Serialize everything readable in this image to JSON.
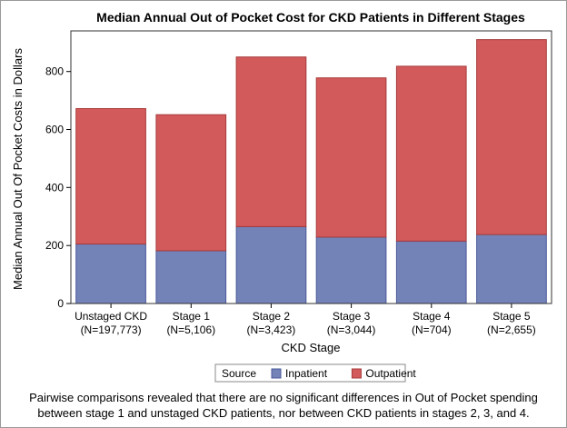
{
  "chart_data": {
    "type": "bar",
    "stacked": true,
    "title": "Median Annual Out of Pocket Cost for CKD Patients in Different Stages",
    "xlabel": "CKD Stage",
    "ylabel": "Median Annual Out Of Pocket Costs in Dollars",
    "ylim": [
      0,
      940
    ],
    "yticks": [
      0,
      200,
      400,
      600,
      800
    ],
    "categories": [
      {
        "line1": "Unstaged CKD",
        "line2": "(N=197,773)"
      },
      {
        "line1": "Stage 1",
        "line2": "(N=5,106)"
      },
      {
        "line1": "Stage 2",
        "line2": "(N=3,423)"
      },
      {
        "line1": "Stage 3",
        "line2": "(N=3,044)"
      },
      {
        "line1": "Stage 4",
        "line2": "(N=704)"
      },
      {
        "line1": "Stage 5",
        "line2": "(N=2,655)"
      }
    ],
    "series": [
      {
        "name": "Inpatient",
        "color": "#7383b8",
        "edge": "#4b5a9a",
        "values": [
          205,
          182,
          265,
          229,
          215,
          238
        ]
      },
      {
        "name": "Outpatient",
        "color": "#d35a5a",
        "edge": "#a83a3a",
        "values": [
          467,
          469,
          585,
          549,
          603,
          672
        ]
      }
    ],
    "legend": {
      "title": "Source",
      "placement": "bottom"
    },
    "grid": false
  },
  "footnote": {
    "line1": "Pairwise comparisons revealed that there are no significant differences in Out of Pocket spending",
    "line2": "between stage 1 and unstaged CKD patients, nor between CKD patients in stages 2, 3, and 4."
  }
}
